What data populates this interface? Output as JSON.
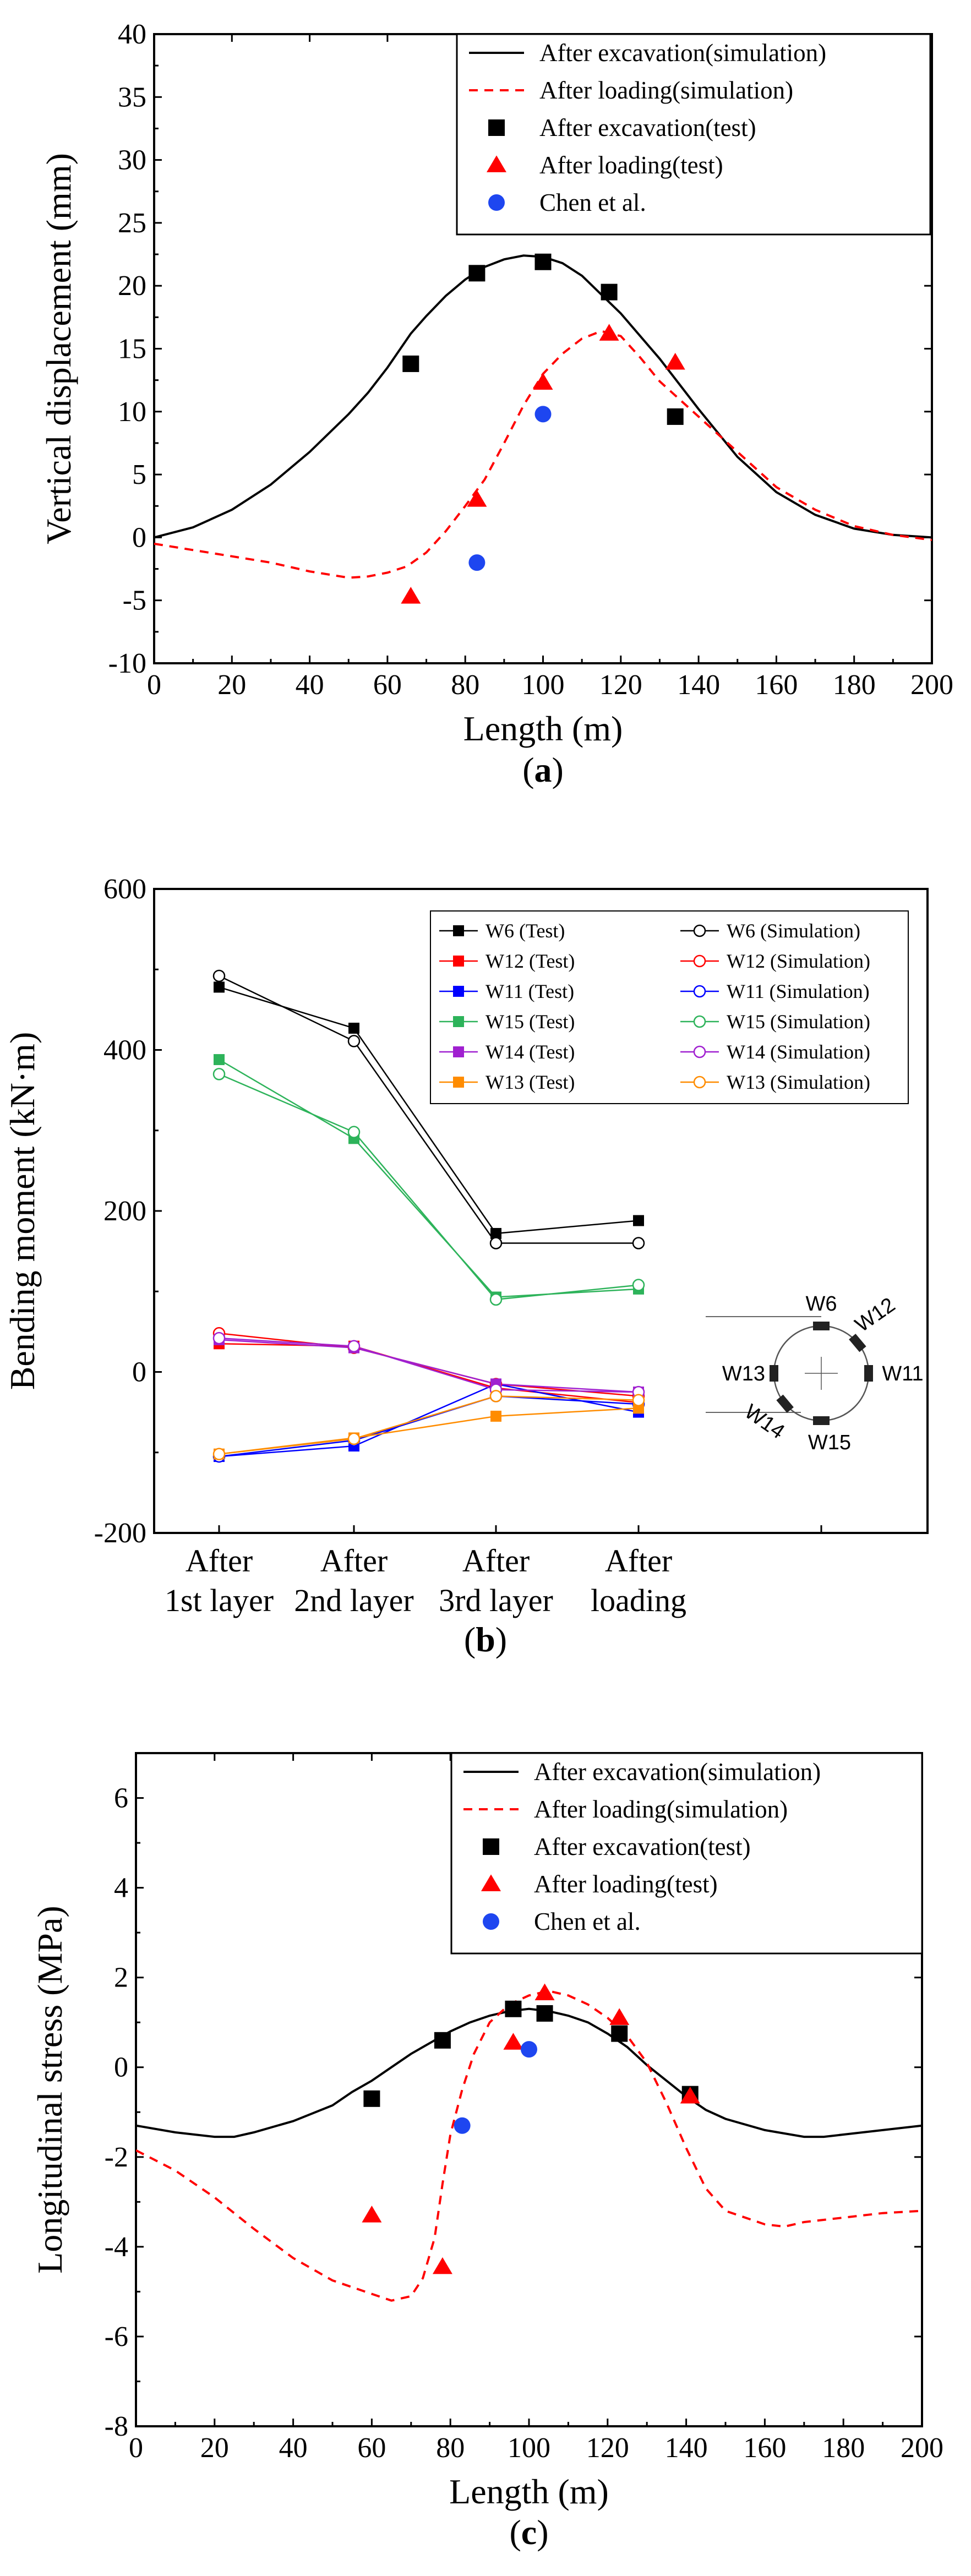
{
  "chart_data": [
    {
      "type": "line",
      "panel_label": "a",
      "xlabel": "Length (m)",
      "ylabel": "Vertical displacement (mm)",
      "xlim": [
        0,
        200
      ],
      "ylim": [
        -10,
        40
      ],
      "xticks": [
        "0",
        "20",
        "40",
        "60",
        "80",
        "100",
        "120",
        "140",
        "160",
        "180",
        "200"
      ],
      "yticks": [
        "-10",
        "-5",
        "0",
        "5",
        "10",
        "15",
        "20",
        "25",
        "30",
        "35",
        "40"
      ],
      "legend_position": "top-right",
      "series": [
        {
          "name": "After excavation(simulation)",
          "kind": "line",
          "style": "solid",
          "color": "#000000",
          "x": [
            0,
            10,
            20,
            30,
            40,
            50,
            55,
            60,
            66,
            70,
            75,
            80,
            85,
            90,
            95,
            100,
            105,
            110,
            115,
            120,
            130,
            140,
            150,
            160,
            170,
            180,
            190,
            200
          ],
          "y": [
            0,
            0.8,
            2.2,
            4.2,
            6.8,
            9.8,
            11.5,
            13.5,
            16.2,
            17.6,
            19.2,
            20.5,
            21.5,
            22.1,
            22.4,
            22.3,
            21.8,
            20.8,
            19.3,
            17.8,
            14.2,
            10.2,
            6.4,
            3.6,
            1.8,
            0.7,
            0.2,
            0
          ]
        },
        {
          "name": "After loading(simulation)",
          "kind": "line",
          "style": "dashed",
          "color": "#ff0000",
          "x": [
            0,
            10,
            20,
            30,
            40,
            50,
            55,
            60,
            65,
            70,
            75,
            80,
            85,
            90,
            95,
            100,
            105,
            110,
            115,
            120,
            125,
            130,
            140,
            150,
            160,
            170,
            180,
            190,
            200
          ],
          "y": [
            -0.5,
            -1.0,
            -1.5,
            -2.0,
            -2.7,
            -3.2,
            -3.1,
            -2.8,
            -2.3,
            -1.2,
            0.5,
            2.5,
            4.6,
            7.5,
            10.5,
            13.0,
            14.6,
            15.8,
            16.4,
            16.0,
            14.3,
            12.4,
            9.6,
            6.8,
            4.0,
            2.2,
            0.9,
            0.2,
            -0.2
          ]
        },
        {
          "name": "After excavation(test)",
          "kind": "scatter",
          "marker": "square",
          "color": "#000000",
          "x": [
            66,
            83,
            100,
            117,
            134
          ],
          "y": [
            13.8,
            21.0,
            21.9,
            19.5,
            9.6
          ]
        },
        {
          "name": "After loading(test)",
          "kind": "scatter",
          "marker": "triangle",
          "color": "#ff0000",
          "x": [
            66,
            83,
            100,
            117,
            134
          ],
          "y": [
            -4.7,
            3.0,
            12.3,
            16.2,
            13.9
          ]
        },
        {
          "name": "Chen et al.",
          "kind": "scatter",
          "marker": "circle",
          "color": "#1e46f0",
          "x": [
            83,
            100
          ],
          "y": [
            -2.0,
            9.8
          ]
        }
      ]
    },
    {
      "type": "line",
      "panel_label": "b",
      "xlabel": "",
      "ylabel": "Bending moment (kN·m)",
      "ylim": [
        -200,
        600
      ],
      "yticks": [
        "-200",
        "0",
        "200",
        "400",
        "600"
      ],
      "categories": [
        "After\n1st layer",
        "After\n2nd layer",
        "After\n3rd layer",
        "After\nloading"
      ],
      "legend_position": "top-right",
      "series": [
        {
          "name": "W6 (Test)",
          "marker": "filled-square",
          "color": "#000000",
          "values": [
            478,
            427,
            172,
            188
          ]
        },
        {
          "name": "W6 (Simulation)",
          "marker": "open-circle",
          "color": "#000000",
          "values": [
            492,
            411,
            160,
            160
          ]
        },
        {
          "name": "W12 (Test)",
          "marker": "filled-square",
          "color": "#ff0000",
          "values": [
            35,
            32,
            -20,
            -38
          ]
        },
        {
          "name": "W12 (Simulation)",
          "marker": "open-circle",
          "color": "#ff0000",
          "values": [
            48,
            30,
            -15,
            -30
          ]
        },
        {
          "name": "W11 (Test)",
          "marker": "filled-square",
          "color": "#0000ff",
          "values": [
            -105,
            -92,
            -15,
            -50
          ]
        },
        {
          "name": "W11 (Simulation)",
          "marker": "open-circle",
          "color": "#0000ff",
          "values": [
            -105,
            -85,
            -30,
            -40
          ]
        },
        {
          "name": "W15 (Test)",
          "marker": "filled-square",
          "color": "#2db35a",
          "values": [
            388,
            290,
            93,
            103
          ]
        },
        {
          "name": "W15 (Simulation)",
          "marker": "open-circle",
          "color": "#2db35a",
          "values": [
            370,
            298,
            90,
            108
          ]
        },
        {
          "name": "W14 (Test)",
          "marker": "filled-square",
          "color": "#a020d0",
          "values": [
            40,
            30,
            -15,
            -25
          ]
        },
        {
          "name": "W14 (Simulation)",
          "marker": "open-circle",
          "color": "#a020d0",
          "values": [
            42,
            32,
            -22,
            -25
          ]
        },
        {
          "name": "W13 (Test)",
          "marker": "filled-square",
          "color": "#ff8c00",
          "values": [
            -102,
            -82,
            -55,
            -45
          ]
        },
        {
          "name": "W13 (Simulation)",
          "marker": "open-circle",
          "color": "#ff8c00",
          "values": [
            -102,
            -83,
            -30,
            -35
          ]
        }
      ],
      "inset_labels": [
        "W6",
        "W12",
        "W13",
        "W11",
        "W14",
        "W15"
      ]
    },
    {
      "type": "line",
      "panel_label": "c",
      "xlabel": "Length (m)",
      "ylabel": "Longitudinal stress (MPa)",
      "xlim": [
        0,
        200
      ],
      "ylim": [
        -8,
        7
      ],
      "xticks": [
        "0",
        "20",
        "40",
        "60",
        "80",
        "100",
        "120",
        "140",
        "160",
        "180",
        "200"
      ],
      "yticks": [
        "-8",
        "-6",
        "-4",
        "-2",
        "0",
        "2",
        "4",
        "6"
      ],
      "legend_position": "top-right",
      "series": [
        {
          "name": "After excavation(simulation)",
          "kind": "line",
          "style": "solid",
          "color": "#000000",
          "x": [
            0,
            10,
            20,
            25,
            30,
            40,
            50,
            55,
            60,
            65,
            70,
            75,
            80,
            85,
            90,
            95,
            100,
            105,
            110,
            115,
            120,
            125,
            130,
            135,
            140,
            145,
            150,
            160,
            170,
            175,
            180,
            190,
            200
          ],
          "y": [
            -1.3,
            -1.45,
            -1.55,
            -1.55,
            -1.45,
            -1.2,
            -0.85,
            -0.55,
            -0.3,
            0.0,
            0.3,
            0.55,
            0.8,
            1.0,
            1.15,
            1.25,
            1.3,
            1.25,
            1.15,
            1.0,
            0.75,
            0.45,
            0.05,
            -0.3,
            -0.65,
            -0.95,
            -1.15,
            -1.4,
            -1.55,
            -1.55,
            -1.5,
            -1.4,
            -1.3
          ]
        },
        {
          "name": "After loading(simulation)",
          "kind": "line",
          "style": "dashed",
          "color": "#ff0000",
          "x": [
            0,
            10,
            20,
            30,
            40,
            50,
            60,
            65,
            70,
            73,
            76,
            78,
            80,
            83,
            86,
            90,
            95,
            100,
            105,
            110,
            115,
            120,
            125,
            130,
            135,
            140,
            145,
            150,
            160,
            165,
            170,
            180,
            190,
            200
          ],
          "y": [
            -1.85,
            -2.3,
            -2.9,
            -3.6,
            -4.25,
            -4.75,
            -5.05,
            -5.2,
            -5.1,
            -4.7,
            -3.8,
            -2.6,
            -1.5,
            -0.5,
            0.3,
            1.0,
            1.4,
            1.6,
            1.7,
            1.6,
            1.4,
            1.1,
            0.7,
            0.1,
            -0.8,
            -1.8,
            -2.7,
            -3.2,
            -3.5,
            -3.55,
            -3.45,
            -3.35,
            -3.25,
            -3.2
          ]
        },
        {
          "name": "After excavation(test)",
          "kind": "scatter",
          "marker": "square",
          "color": "#000000",
          "x": [
            60,
            78,
            96,
            104,
            123,
            141
          ],
          "y": [
            -0.7,
            0.6,
            1.3,
            1.2,
            0.75,
            -0.6
          ]
        },
        {
          "name": "After loading(test)",
          "kind": "scatter",
          "marker": "triangle",
          "color": "#ff0000",
          "x": [
            60,
            78,
            96,
            104,
            123,
            141
          ],
          "y": [
            -3.3,
            -4.45,
            0.55,
            1.65,
            1.1,
            -0.65
          ]
        },
        {
          "name": "Chen et al.",
          "kind": "scatter",
          "marker": "circle",
          "color": "#1e46f0",
          "x": [
            83,
            100
          ],
          "y": [
            -1.3,
            0.4
          ]
        }
      ]
    }
  ]
}
